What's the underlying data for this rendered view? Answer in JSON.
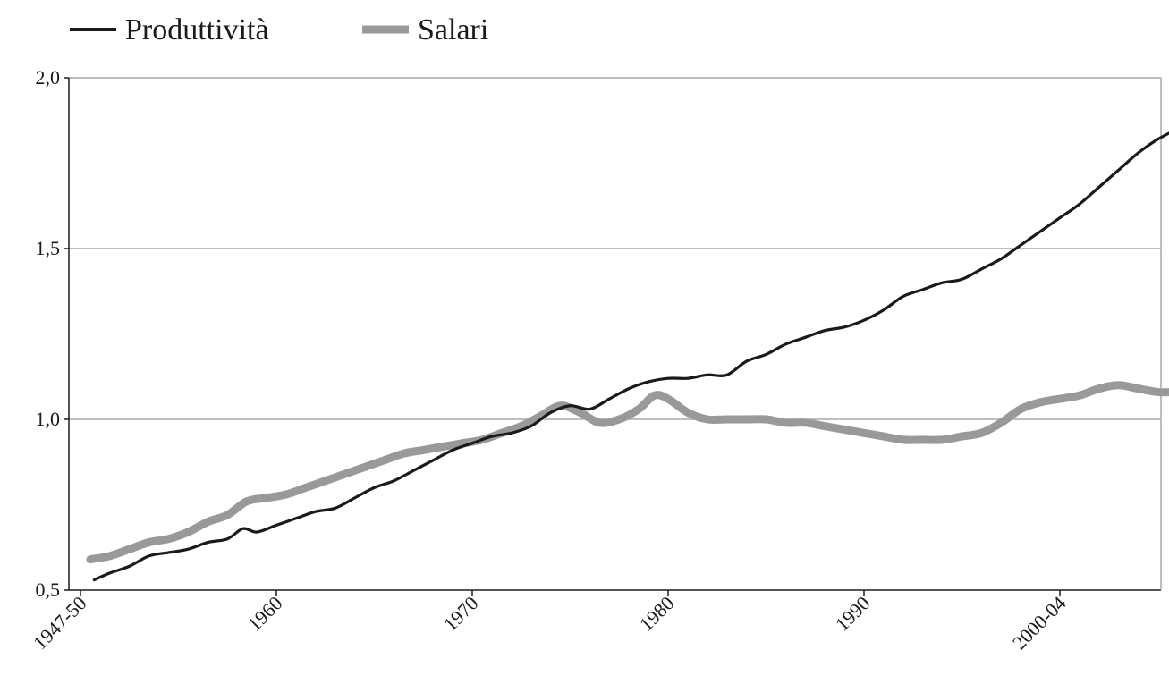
{
  "chart_data": {
    "type": "line",
    "title": "",
    "xlabel": "",
    "ylabel": "",
    "ylim": [
      0.5,
      2.0
    ],
    "xlim": [
      1950,
      2008
    ],
    "grid": "horizontal",
    "legend_position": "top-left",
    "y_ticks": [
      {
        "value": 0.5,
        "label": "0,5"
      },
      {
        "value": 1.0,
        "label": "1,0"
      },
      {
        "value": 1.5,
        "label": "1,5"
      },
      {
        "value": 2.0,
        "label": "2,0"
      }
    ],
    "x_ticks": [
      {
        "value": 1950,
        "label": "1947-50"
      },
      {
        "value": 1960,
        "label": "1960"
      },
      {
        "value": 1970,
        "label": "1970"
      },
      {
        "value": 1980,
        "label": "1980"
      },
      {
        "value": 1990,
        "label": "1990"
      },
      {
        "value": 2000,
        "label": "2000-04"
      }
    ],
    "series": [
      {
        "name": "Produttività",
        "color": "#1a1a1a",
        "points": [
          [
            1950.7,
            0.53
          ],
          [
            1951.5,
            0.55
          ],
          [
            1952.5,
            0.57
          ],
          [
            1953.5,
            0.6
          ],
          [
            1954.5,
            0.61
          ],
          [
            1955.5,
            0.62
          ],
          [
            1956.5,
            0.64
          ],
          [
            1957.5,
            0.65
          ],
          [
            1958.3,
            0.68
          ],
          [
            1959.0,
            0.67
          ],
          [
            1960.0,
            0.69
          ],
          [
            1961.0,
            0.71
          ],
          [
            1962.0,
            0.73
          ],
          [
            1963.0,
            0.74
          ],
          [
            1964.0,
            0.77
          ],
          [
            1965.0,
            0.8
          ],
          [
            1966.0,
            0.82
          ],
          [
            1967.0,
            0.85
          ],
          [
            1968.0,
            0.88
          ],
          [
            1969.0,
            0.91
          ],
          [
            1970.0,
            0.93
          ],
          [
            1971.0,
            0.95
          ],
          [
            1972.0,
            0.96
          ],
          [
            1973.0,
            0.98
          ],
          [
            1974.0,
            1.02
          ],
          [
            1975.0,
            1.04
          ],
          [
            1976.0,
            1.03
          ],
          [
            1977.0,
            1.06
          ],
          [
            1978.0,
            1.09
          ],
          [
            1979.0,
            1.11
          ],
          [
            1980.0,
            1.12
          ],
          [
            1981.0,
            1.12
          ],
          [
            1982.0,
            1.13
          ],
          [
            1983.0,
            1.13
          ],
          [
            1984.0,
            1.17
          ],
          [
            1985.0,
            1.19
          ],
          [
            1986.0,
            1.22
          ],
          [
            1987.0,
            1.24
          ],
          [
            1988.0,
            1.26
          ],
          [
            1989.0,
            1.27
          ],
          [
            1990.0,
            1.29
          ],
          [
            1991.0,
            1.32
          ],
          [
            1992.0,
            1.36
          ],
          [
            1993.0,
            1.38
          ],
          [
            1994.0,
            1.4
          ],
          [
            1995.0,
            1.41
          ],
          [
            1996.0,
            1.44
          ],
          [
            1997.0,
            1.47
          ],
          [
            1998.0,
            1.51
          ],
          [
            1999.0,
            1.55
          ],
          [
            2000.0,
            1.59
          ],
          [
            2001.0,
            1.63
          ],
          [
            2002.0,
            1.68
          ],
          [
            2003.0,
            1.73
          ],
          [
            2004.0,
            1.78
          ],
          [
            2005.0,
            1.82
          ],
          [
            2006.0,
            1.85
          ]
        ]
      },
      {
        "name": "Salari",
        "color": "#999999",
        "points": [
          [
            1950.5,
            0.59
          ],
          [
            1951.5,
            0.6
          ],
          [
            1952.5,
            0.62
          ],
          [
            1953.5,
            0.64
          ],
          [
            1954.5,
            0.65
          ],
          [
            1955.5,
            0.67
          ],
          [
            1956.5,
            0.7
          ],
          [
            1957.5,
            0.72
          ],
          [
            1958.5,
            0.76
          ],
          [
            1959.5,
            0.77
          ],
          [
            1960.5,
            0.78
          ],
          [
            1961.5,
            0.8
          ],
          [
            1962.5,
            0.82
          ],
          [
            1963.5,
            0.84
          ],
          [
            1964.5,
            0.86
          ],
          [
            1965.5,
            0.88
          ],
          [
            1966.5,
            0.9
          ],
          [
            1967.5,
            0.91
          ],
          [
            1968.5,
            0.92
          ],
          [
            1969.5,
            0.93
          ],
          [
            1970.5,
            0.94
          ],
          [
            1971.5,
            0.96
          ],
          [
            1972.5,
            0.98
          ],
          [
            1973.5,
            1.01
          ],
          [
            1974.5,
            1.04
          ],
          [
            1975.5,
            1.02
          ],
          [
            1976.5,
            0.99
          ],
          [
            1977.5,
            1.0
          ],
          [
            1978.5,
            1.03
          ],
          [
            1979.3,
            1.07
          ],
          [
            1980.0,
            1.06
          ],
          [
            1981.0,
            1.02
          ],
          [
            1982.0,
            1.0
          ],
          [
            1983.0,
            1.0
          ],
          [
            1984.0,
            1.0
          ],
          [
            1985.0,
            1.0
          ],
          [
            1986.0,
            0.99
          ],
          [
            1987.0,
            0.99
          ],
          [
            1988.0,
            0.98
          ],
          [
            1989.0,
            0.97
          ],
          [
            1990.0,
            0.96
          ],
          [
            1991.0,
            0.95
          ],
          [
            1992.0,
            0.94
          ],
          [
            1993.0,
            0.94
          ],
          [
            1994.0,
            0.94
          ],
          [
            1995.0,
            0.95
          ],
          [
            1996.0,
            0.96
          ],
          [
            1997.0,
            0.99
          ],
          [
            1998.0,
            1.03
          ],
          [
            1999.0,
            1.05
          ],
          [
            2000.0,
            1.06
          ],
          [
            2001.0,
            1.07
          ],
          [
            2002.0,
            1.09
          ],
          [
            2003.0,
            1.1
          ],
          [
            2004.0,
            1.09
          ],
          [
            2005.0,
            1.08
          ],
          [
            2006.0,
            1.08
          ]
        ]
      }
    ]
  }
}
